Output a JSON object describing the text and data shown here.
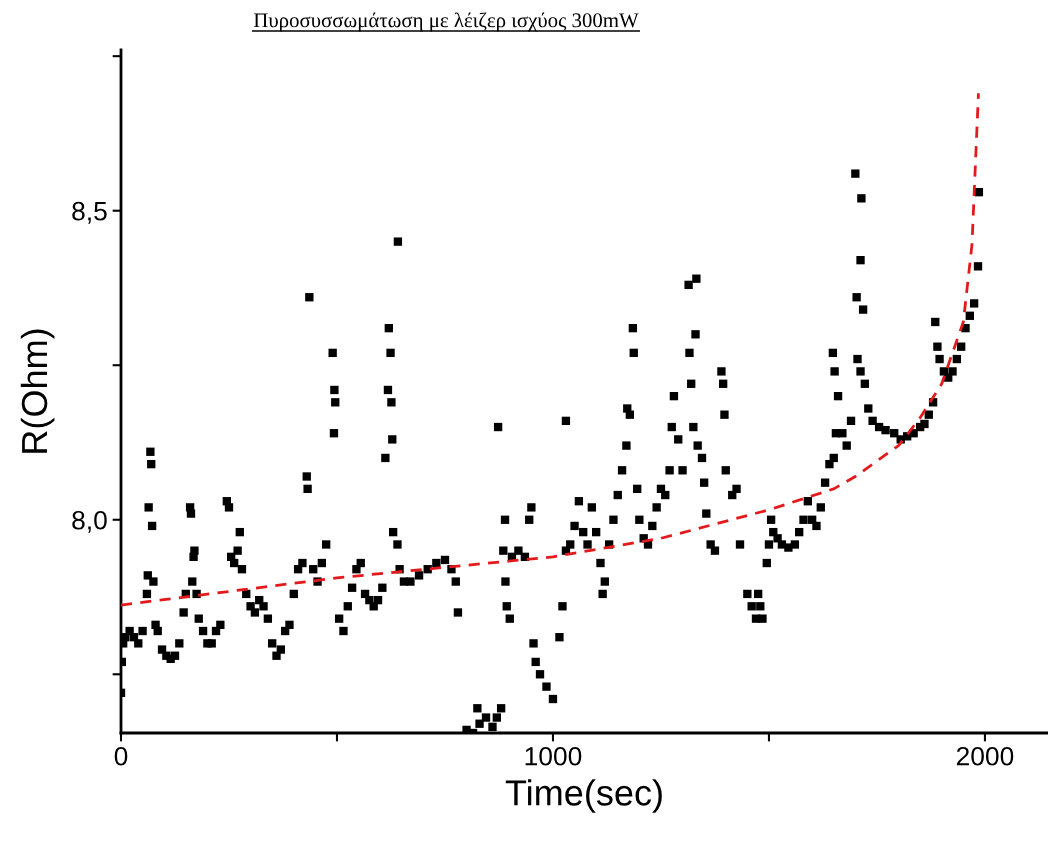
{
  "chart_data": {
    "type": "scatter",
    "title": "Πυροσυσσωμάτωση με λέιζερ ισχύος 300mW",
    "xlabel": "Time(sec)",
    "ylabel": "R(Ohm)",
    "xlim": [
      0,
      2146
    ],
    "ylim": [
      7.655,
      8.76
    ],
    "xticks": [
      0,
      {
        "value": 500,
        "label": null
      },
      1000,
      {
        "value": 1500,
        "label": null
      },
      2000
    ],
    "yticks": [
      {
        "value": 7.75,
        "label": null
      },
      {
        "value": 8.0,
        "label": "8,0"
      },
      {
        "value": 8.25,
        "label": null
      },
      {
        "value": 8.5,
        "label": "8,5"
      },
      {
        "value": 8.75,
        "label": null
      }
    ],
    "grid": false,
    "marker": "square",
    "series": [
      {
        "color": "#000000",
        "x": [
          0,
          2,
          5,
          10,
          20,
          30,
          40,
          50,
          60,
          62,
          64,
          68,
          70,
          72,
          75,
          80,
          85,
          95,
          105,
          115,
          125,
          135,
          145,
          150,
          160,
          162,
          165,
          168,
          170,
          175,
          180,
          190,
          200,
          210,
          220,
          230,
          245,
          250,
          255,
          262,
          270,
          275,
          280,
          290,
          300,
          310,
          320,
          330,
          340,
          350,
          360,
          370,
          380,
          390,
          400,
          410,
          420,
          430,
          432,
          436,
          445,
          455,
          465,
          475,
          490,
          494,
          496,
          493,
          505,
          515,
          525,
          535,
          545,
          555,
          565,
          575,
          585,
          595,
          605,
          612,
          618,
          620,
          624,
          626,
          628,
          641,
          630,
          640,
          645,
          655,
          670,
          690,
          710,
          730,
          750,
          765,
          775,
          780,
          800,
          815,
          830,
          845,
          860,
          870,
          825,
          880,
          873,
          889,
          885,
          890,
          893,
          900,
          905,
          920,
          935,
          945,
          950,
          955,
          960,
          970,
          985,
          1000,
          1015,
          1022,
          1030,
          1030,
          1040,
          1050,
          1060,
          1070,
          1080,
          1090,
          1100,
          1110,
          1115,
          1120,
          1130,
          1140,
          1150,
          1160,
          1170,
          1185,
          1187,
          1172,
          1178,
          1195,
          1200,
          1210,
          1220,
          1230,
          1240,
          1250,
          1260,
          1270,
          1275,
          1280,
          1290,
          1300,
          1314,
          1332,
          1330,
          1316,
          1320,
          1325,
          1335,
          1345,
          1350,
          1355,
          1365,
          1375,
          1390,
          1394,
          1397,
          1400,
          1415,
          1425,
          1433,
          1450,
          1460,
          1470,
          1475,
          1480,
          1485,
          1495,
          1500,
          1505,
          1510,
          1520,
          1530,
          1545,
          1560,
          1570,
          1580,
          1590,
          1600,
          1610,
          1620,
          1630,
          1640,
          1650,
          1655,
          1648,
          1652,
          1660,
          1670,
          1680,
          1690,
          1700,
          1714,
          1712,
          1703,
          1718,
          1705,
          1712,
          1722,
          1730,
          1740,
          1755,
          1770,
          1790,
          1805,
          1820,
          1835,
          1850,
          1860,
          1870,
          1880,
          1885,
          1890,
          1895,
          1905,
          1915,
          1925,
          1935,
          1945,
          1955,
          1965,
          1975,
          1984,
          1986
        ],
        "values": [
          7.72,
          7.77,
          7.8,
          7.81,
          7.82,
          7.81,
          7.8,
          7.82,
          7.88,
          7.91,
          8.02,
          8.11,
          8.09,
          7.99,
          7.9,
          7.83,
          7.82,
          7.79,
          7.78,
          7.775,
          7.78,
          7.8,
          7.85,
          7.88,
          8.02,
          8.01,
          7.9,
          7.94,
          7.95,
          7.88,
          7.84,
          7.82,
          7.8,
          7.8,
          7.82,
          7.83,
          8.03,
          8.02,
          7.94,
          7.93,
          7.95,
          7.98,
          7.92,
          7.88,
          7.86,
          7.85,
          7.87,
          7.86,
          7.84,
          7.8,
          7.78,
          7.79,
          7.82,
          7.83,
          7.88,
          7.92,
          7.93,
          8.07,
          8.05,
          8.36,
          7.92,
          7.9,
          7.93,
          7.96,
          8.27,
          8.21,
          8.19,
          8.14,
          7.84,
          7.82,
          7.86,
          7.89,
          7.92,
          7.93,
          7.88,
          7.87,
          7.86,
          7.87,
          7.89,
          8.1,
          8.21,
          8.31,
          8.27,
          8.19,
          8.13,
          8.45,
          7.98,
          7.96,
          7.92,
          7.9,
          7.9,
          7.91,
          7.92,
          7.93,
          7.935,
          7.92,
          7.9,
          7.85,
          7.66,
          7.655,
          7.67,
          7.68,
          7.665,
          7.68,
          7.695,
          7.695,
          8.15,
          8.0,
          7.95,
          7.9,
          7.86,
          7.84,
          7.94,
          7.95,
          7.94,
          8.0,
          8.02,
          7.8,
          7.77,
          7.75,
          7.73,
          7.71,
          7.81,
          7.86,
          8.16,
          7.95,
          7.96,
          7.99,
          8.03,
          7.98,
          7.96,
          8.02,
          7.98,
          7.93,
          7.88,
          7.9,
          7.96,
          8.0,
          8.04,
          8.08,
          8.12,
          8.31,
          8.27,
          8.18,
          8.17,
          8.05,
          8.0,
          7.97,
          7.96,
          7.99,
          8.02,
          8.05,
          8.04,
          8.08,
          8.15,
          8.2,
          8.13,
          8.08,
          8.38,
          8.39,
          8.3,
          8.27,
          8.22,
          8.15,
          8.12,
          8.1,
          8.06,
          8.01,
          7.96,
          7.95,
          8.24,
          8.22,
          8.17,
          8.08,
          8.04,
          8.05,
          7.96,
          7.88,
          7.86,
          7.84,
          7.88,
          7.86,
          7.84,
          7.93,
          7.96,
          8.0,
          7.98,
          7.97,
          7.96,
          7.955,
          7.96,
          7.98,
          8.0,
          8.03,
          8.0,
          7.99,
          8.02,
          8.06,
          8.09,
          8.1,
          8.14,
          8.27,
          8.24,
          8.2,
          8.14,
          8.12,
          8.16,
          8.56,
          8.52,
          8.42,
          8.36,
          8.34,
          8.26,
          8.24,
          8.22,
          8.18,
          8.16,
          8.15,
          8.145,
          8.14,
          8.13,
          8.135,
          8.14,
          8.15,
          8.155,
          8.17,
          8.19,
          8.32,
          8.28,
          8.26,
          8.24,
          8.23,
          8.24,
          8.26,
          8.28,
          8.31,
          8.33,
          8.35,
          8.41,
          8.53
        ]
      },
      {
        "type": "line",
        "color": "#e31a1c",
        "line_style": "dashed",
        "marker": "none",
        "x": [
          0,
          500,
          1000,
          1250,
          1500,
          1650,
          1700,
          1800,
          1850,
          1900,
          1950,
          1970,
          1985
        ],
        "values": [
          7.862,
          7.906,
          7.94,
          7.97,
          8.016,
          8.05,
          8.07,
          8.12,
          8.165,
          8.22,
          8.32,
          8.445,
          8.69
        ]
      }
    ]
  }
}
